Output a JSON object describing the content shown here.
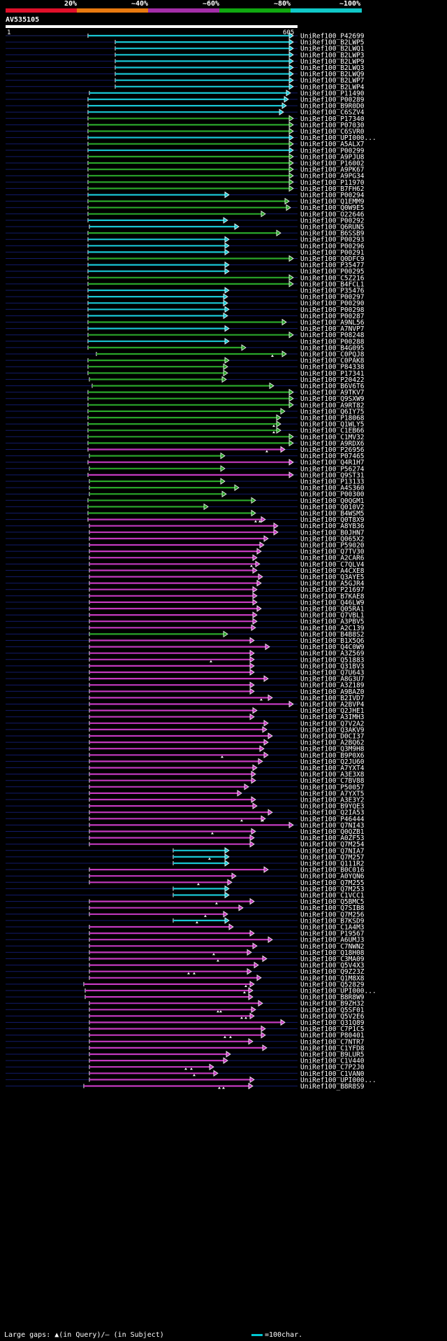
{
  "header": {
    "percent_labels": [
      "20%",
      "~40%",
      "~60%",
      "~80%",
      "~100%"
    ],
    "percent_colors": [
      "#e0102a",
      "#e87a10",
      "#a42ea8",
      "#10a810",
      "#10c8c8"
    ],
    "query_id": "AV535105",
    "query_start": "1",
    "query_end": "605"
  },
  "colors": {
    "cyan": "#19c6d4",
    "green": "#2aa62a",
    "magenta": "#c43ac0",
    "navy": "#121a6a"
  },
  "footer": {
    "gaps_legend": "Large gaps: ▲(in Query)/– (in Subject)",
    "scale_legend": "=100char."
  },
  "hits": [
    {
      "id": "UniRef100_P42699",
      "c": "c",
      "x1": 126,
      "x2": 420,
      "pre": true
    },
    {
      "id": "UniRef100_B2LWP5",
      "c": "c",
      "x1": 165,
      "x2": 420
    },
    {
      "id": "UniRef100_B2LWQ1",
      "c": "c",
      "x1": 165,
      "x2": 420
    },
    {
      "id": "UniRef100_B2LWP3",
      "c": "c",
      "x1": 165,
      "x2": 420
    },
    {
      "id": "UniRef100_B2LWP9",
      "c": "c",
      "x1": 165,
      "x2": 420
    },
    {
      "id": "UniRef100_B2LWQ3",
      "c": "c",
      "x1": 165,
      "x2": 420
    },
    {
      "id": "UniRef100_B2LWQ9",
      "c": "c",
      "x1": 165,
      "x2": 420
    },
    {
      "id": "UniRef100_B2LWP7",
      "c": "c",
      "x1": 165,
      "x2": 420
    },
    {
      "id": "UniRef100_B2LWP4",
      "c": "c",
      "x1": 165,
      "x2": 420
    },
    {
      "id": "UniRef100_P11490",
      "c": "c",
      "x1": 128,
      "x2": 416
    },
    {
      "id": "UniRef100_P00289",
      "c": "c",
      "x1": 126,
      "x2": 413
    },
    {
      "id": "UniRef100_B9R0D0",
      "c": "c",
      "x1": 126,
      "x2": 410
    },
    {
      "id": "UniRef100_C6SZV4",
      "c": "c",
      "x1": 126,
      "x2": 406
    },
    {
      "id": "UniRef100_P17340",
      "c": "g",
      "x1": 126,
      "x2": 420
    },
    {
      "id": "UniRef100_P07030",
      "c": "g",
      "x1": 126,
      "x2": 420
    },
    {
      "id": "UniRef100_C6SVR0",
      "c": "g",
      "x1": 126,
      "x2": 420
    },
    {
      "id": "UniRef100_UPI000...",
      "c": "c",
      "x1": 126,
      "x2": 420
    },
    {
      "id": "UniRef100_A5ALX7",
      "c": "g",
      "x1": 126,
      "x2": 420
    },
    {
      "id": "UniRef100_P00299",
      "c": "c",
      "x1": 126,
      "x2": 420
    },
    {
      "id": "UniRef100_A9PJU8",
      "c": "g",
      "x1": 126,
      "x2": 420
    },
    {
      "id": "UniRef100_P16002",
      "c": "g",
      "x1": 126,
      "x2": 420
    },
    {
      "id": "UniRef100_A9PK67",
      "c": "g",
      "x1": 126,
      "x2": 420
    },
    {
      "id": "UniRef100_A9PG34",
      "c": "g",
      "x1": 126,
      "x2": 420
    },
    {
      "id": "UniRef100_P11970",
      "c": "g",
      "x1": 126,
      "x2": 420
    },
    {
      "id": "UniRef100_B7FH62",
      "c": "g",
      "x1": 126,
      "x2": 420
    },
    {
      "id": "UniRef100_P00294",
      "c": "c",
      "x1": 126,
      "x2": 328
    },
    {
      "id": "UniRef100_Q1EMM9",
      "c": "g",
      "x1": 126,
      "x2": 414
    },
    {
      "id": "UniRef100_Q0W9E5",
      "c": "g",
      "x1": 126,
      "x2": 416
    },
    {
      "id": "UniRef100_O22646",
      "c": "g",
      "x1": 126,
      "x2": 380
    },
    {
      "id": "UniRef100_P00292",
      "c": "c",
      "x1": 126,
      "x2": 326
    },
    {
      "id": "UniRef100_Q6RUN5",
      "c": "c",
      "x1": 128,
      "x2": 342
    },
    {
      "id": "UniRef100_B6SSB9",
      "c": "g",
      "x1": 126,
      "x2": 402
    },
    {
      "id": "UniRef100_P00293",
      "c": "c",
      "x1": 126,
      "x2": 328
    },
    {
      "id": "UniRef100_P00296",
      "c": "c",
      "x1": 126,
      "x2": 328
    },
    {
      "id": "UniRef100_P00291",
      "c": "c",
      "x1": 126,
      "x2": 328
    },
    {
      "id": "UniRef100_Q0DFC9",
      "c": "g",
      "x1": 126,
      "x2": 420
    },
    {
      "id": "UniRef100_P35477",
      "c": "c",
      "x1": 126,
      "x2": 328
    },
    {
      "id": "UniRef100_P00295",
      "c": "c",
      "x1": 126,
      "x2": 328
    },
    {
      "id": "UniRef100_C5Z216",
      "c": "g",
      "x1": 126,
      "x2": 420
    },
    {
      "id": "UniRef100_B4FCL1",
      "c": "g",
      "x1": 126,
      "x2": 420
    },
    {
      "id": "UniRef100_P35476",
      "c": "c",
      "x1": 126,
      "x2": 328
    },
    {
      "id": "UniRef100_P00297",
      "c": "c",
      "x1": 126,
      "x2": 326
    },
    {
      "id": "UniRef100_P00290",
      "c": "c",
      "x1": 126,
      "x2": 326
    },
    {
      "id": "UniRef100_P00298",
      "c": "c",
      "x1": 126,
      "x2": 328
    },
    {
      "id": "UniRef100_P00287",
      "c": "c",
      "x1": 126,
      "x2": 326
    },
    {
      "id": "UniRef100_A9NL56",
      "c": "g",
      "x1": 126,
      "x2": 410
    },
    {
      "id": "UniRef100_A7NVP7",
      "c": "c",
      "x1": 126,
      "x2": 328
    },
    {
      "id": "UniRef100_P08248",
      "c": "g",
      "x1": 126,
      "x2": 420
    },
    {
      "id": "UniRef100_P00288",
      "c": "c",
      "x1": 126,
      "x2": 328
    },
    {
      "id": "UniRef100_B4G095",
      "c": "g",
      "x1": 126,
      "x2": 352
    },
    {
      "id": "UniRef100_C0PQJ8",
      "c": "g",
      "x1": 138,
      "x2": 410,
      "tri": [
        390
      ]
    },
    {
      "id": "UniRef100_C0PAK8",
      "c": "g",
      "x1": 126,
      "x2": 328
    },
    {
      "id": "UniRef100_P84338",
      "c": "g",
      "x1": 126,
      "x2": 326
    },
    {
      "id": "UniRef100_P17341",
      "c": "g",
      "x1": 126,
      "x2": 326
    },
    {
      "id": "UniRef100_P20422",
      "c": "g",
      "x1": 128,
      "x2": 324
    },
    {
      "id": "UniRef100_B6V6T6",
      "c": "g",
      "x1": 132,
      "x2": 392
    },
    {
      "id": "UniRef100_A9TKV7",
      "c": "g",
      "x1": 126,
      "x2": 420
    },
    {
      "id": "UniRef100_Q9SXW9",
      "c": "g",
      "x1": 126,
      "x2": 420
    },
    {
      "id": "UniRef100_A9RT82",
      "c": "g",
      "x1": 126,
      "x2": 420
    },
    {
      "id": "UniRef100_Q6IY75",
      "c": "g",
      "x1": 126,
      "x2": 408
    },
    {
      "id": "UniRef100_P18068",
      "c": "g",
      "x1": 126,
      "x2": 402
    },
    {
      "id": "UniRef100_Q1WLY5",
      "c": "g",
      "x1": 126,
      "x2": 402,
      "tri": [
        392
      ]
    },
    {
      "id": "UniRef100_C1EB66",
      "c": "g",
      "x1": 126,
      "x2": 402,
      "tri": [
        392
      ]
    },
    {
      "id": "UniRef100_C1MV32",
      "c": "g",
      "x1": 126,
      "x2": 420
    },
    {
      "id": "UniRef100_A9RDX6",
      "c": "g",
      "x1": 126,
      "x2": 420
    },
    {
      "id": "UniRef100_P26956",
      "c": "m",
      "x1": 126,
      "x2": 408,
      "tri": [
        382
      ]
    },
    {
      "id": "UniRef100_P07465",
      "c": "g",
      "x1": 128,
      "x2": 322
    },
    {
      "id": "UniRef100_Q4R1H7",
      "c": "m",
      "x1": 126,
      "x2": 420
    },
    {
      "id": "UniRef100_P56274",
      "c": "g",
      "x1": 128,
      "x2": 322
    },
    {
      "id": "UniRef100_Q9ST31",
      "c": "m",
      "x1": 126,
      "x2": 420
    },
    {
      "id": "UniRef100_P13133",
      "c": "g",
      "x1": 128,
      "x2": 322
    },
    {
      "id": "UniRef100_A4S360",
      "c": "g",
      "x1": 128,
      "x2": 342
    },
    {
      "id": "UniRef100_P00300",
      "c": "g",
      "x1": 128,
      "x2": 324
    },
    {
      "id": "UniRef100_Q0QGM1",
      "c": "g",
      "x1": 126,
      "x2": 366
    },
    {
      "id": "UniRef100_Q010V2",
      "c": "g",
      "x1": 126,
      "x2": 298
    },
    {
      "id": "UniRef100_B4WSM5",
      "c": "g",
      "x1": 126,
      "x2": 366
    },
    {
      "id": "UniRef100_Q0T8X9",
      "c": "m",
      "x1": 126,
      "x2": 380,
      "tri": [
        366,
        372
      ]
    },
    {
      "id": "UniRef100_A8YB36",
      "c": "m",
      "x1": 128,
      "x2": 398
    },
    {
      "id": "UniRef100_B0JHN7",
      "c": "m",
      "x1": 128,
      "x2": 398
    },
    {
      "id": "UniRef100_Q065X2",
      "c": "m",
      "x1": 128,
      "x2": 384
    },
    {
      "id": "UniRef100_P59020",
      "c": "m",
      "x1": 128,
      "x2": 378
    },
    {
      "id": "UniRef100_Q7TV30",
      "c": "m",
      "x1": 128,
      "x2": 374
    },
    {
      "id": "UniRef100_A2CAR6",
      "c": "m",
      "x1": 128,
      "x2": 368
    },
    {
      "id": "UniRef100_C7QLV4",
      "c": "m",
      "x1": 128,
      "x2": 372,
      "tri": [
        360
      ]
    },
    {
      "id": "UniRef100_A4CXE8",
      "c": "m",
      "x1": 128,
      "x2": 368
    },
    {
      "id": "UniRef100_Q3AYE5",
      "c": "m",
      "x1": 128,
      "x2": 376
    },
    {
      "id": "UniRef100_A5GJR4",
      "c": "m",
      "x1": 128,
      "x2": 374
    },
    {
      "id": "UniRef100_P21697",
      "c": "m",
      "x1": 128,
      "x2": 368
    },
    {
      "id": "UniRef100_B7KAE8",
      "c": "m",
      "x1": 128,
      "x2": 368
    },
    {
      "id": "UniRef100_Q46LW9",
      "c": "m",
      "x1": 128,
      "x2": 368
    },
    {
      "id": "UniRef100_Q05RA1",
      "c": "m",
      "x1": 128,
      "x2": 374
    },
    {
      "id": "UniRef100_Q7VBL1",
      "c": "m",
      "x1": 128,
      "x2": 368
    },
    {
      "id": "UniRef100_A3PBV5",
      "c": "m",
      "x1": 128,
      "x2": 368
    },
    {
      "id": "UniRef100_A2C139",
      "c": "m",
      "x1": 128,
      "x2": 366
    },
    {
      "id": "UniRef100_B4B8S2",
      "c": "g",
      "x1": 128,
      "x2": 326
    },
    {
      "id": "UniRef100_B1X5Q6",
      "c": "m",
      "x1": 128,
      "x2": 364
    },
    {
      "id": "UniRef100_Q4C0W9",
      "c": "m",
      "x1": 128,
      "x2": 386
    },
    {
      "id": "UniRef100_A3Z569",
      "c": "m",
      "x1": 128,
      "x2": 364
    },
    {
      "id": "UniRef100_Q51883",
      "c": "m",
      "x1": 128,
      "x2": 364,
      "tri": [
        302
      ]
    },
    {
      "id": "UniRef100_Q31BV3",
      "c": "m",
      "x1": 128,
      "x2": 364
    },
    {
      "id": "UniRef100_Q7U643",
      "c": "m",
      "x1": 128,
      "x2": 364
    },
    {
      "id": "UniRef100_A8G3U7",
      "c": "m",
      "x1": 128,
      "x2": 384
    },
    {
      "id": "UniRef100_A3Z189",
      "c": "m",
      "x1": 128,
      "x2": 364
    },
    {
      "id": "UniRef100_A9BAZ0",
      "c": "m",
      "x1": 128,
      "x2": 364
    },
    {
      "id": "UniRef100_B2IVD7",
      "c": "m",
      "x1": 128,
      "x2": 390,
      "tri": [
        374
      ]
    },
    {
      "id": "UniRef100_A2BVP4",
      "c": "m",
      "x1": 128,
      "x2": 420
    },
    {
      "id": "UniRef100_Q2JHE1",
      "c": "m",
      "x1": 128,
      "x2": 368
    },
    {
      "id": "UniRef100_A3IMH3",
      "c": "m",
      "x1": 128,
      "x2": 364
    },
    {
      "id": "UniRef100_Q7V2A2",
      "c": "m",
      "x1": 128,
      "x2": 384
    },
    {
      "id": "UniRef100_Q3AKV9",
      "c": "m",
      "x1": 128,
      "x2": 382
    },
    {
      "id": "UniRef100_D0CI37",
      "c": "m",
      "x1": 128,
      "x2": 390
    },
    {
      "id": "UniRef100_A2BQ62",
      "c": "m",
      "x1": 128,
      "x2": 384
    },
    {
      "id": "UniRef100_Q3M9H8",
      "c": "m",
      "x1": 128,
      "x2": 378
    },
    {
      "id": "UniRef100_B9P0X6",
      "c": "m",
      "x1": 128,
      "x2": 384,
      "tri": [
        318
      ]
    },
    {
      "id": "UniRef100_Q2JU60",
      "c": "m",
      "x1": 128,
      "x2": 376
    },
    {
      "id": "UniRef100_A7YXT4",
      "c": "m",
      "x1": 128,
      "x2": 368
    },
    {
      "id": "UniRef100_A3E3X8",
      "c": "m",
      "x1": 128,
      "x2": 366
    },
    {
      "id": "UniRef100_C7BV88",
      "c": "m",
      "x1": 128,
      "x2": 366
    },
    {
      "id": "UniRef100_P50057",
      "c": "m",
      "x1": 128,
      "x2": 356
    },
    {
      "id": "UniRef100_A7YXT5",
      "c": "m",
      "x1": 128,
      "x2": 346
    },
    {
      "id": "UniRef100_A3E3Y2",
      "c": "m",
      "x1": 128,
      "x2": 366
    },
    {
      "id": "UniRef100_B9YQE3",
      "c": "m",
      "x1": 128,
      "x2": 368
    },
    {
      "id": "UniRef100_Q2IA53",
      "c": "m",
      "x1": 128,
      "x2": 390
    },
    {
      "id": "UniRef100_P46444",
      "c": "m",
      "x1": 128,
      "x2": 380,
      "tri": [
        346,
        376
      ]
    },
    {
      "id": "UniRef100_Q7NI43",
      "c": "m",
      "x1": 128,
      "x2": 420
    },
    {
      "id": "UniRef100_Q0QZB1",
      "c": "m",
      "x1": 128,
      "x2": 366,
      "tri": [
        304
      ]
    },
    {
      "id": "UniRef100_A0ZF53",
      "c": "m",
      "x1": 128,
      "x2": 364
    },
    {
      "id": "UniRef100_Q7M254",
      "c": "m",
      "x1": 128,
      "x2": 364
    },
    {
      "id": "UniRef100_Q7NIA7",
      "c": "c",
      "x1": 248,
      "x2": 328
    },
    {
      "id": "UniRef100_Q7M257",
      "c": "c",
      "x1": 248,
      "x2": 328,
      "tri": [
        300
      ]
    },
    {
      "id": "UniRef100_Q111R2",
      "c": "c",
      "x1": 248,
      "x2": 328
    },
    {
      "id": "UniRef100_B0C016",
      "c": "m",
      "x1": 128,
      "x2": 384
    },
    {
      "id": "UniRef100_A0YQN6",
      "c": "m",
      "x1": 128,
      "x2": 338
    },
    {
      "id": "UniRef100_Q7M255",
      "c": "m",
      "x1": 128,
      "x2": 332,
      "tri": [
        284
      ]
    },
    {
      "id": "UniRef100_Q7M253",
      "c": "c",
      "x1": 248,
      "x2": 328
    },
    {
      "id": "UniRef100_C1VCC1",
      "c": "c",
      "x1": 248,
      "x2": 328
    },
    {
      "id": "UniRef100_Q5BMC5",
      "c": "m",
      "x1": 128,
      "x2": 364,
      "tri": [
        310
      ]
    },
    {
      "id": "UniRef100_Q7SIB8",
      "c": "m",
      "x1": 128,
      "x2": 348
    },
    {
      "id": "UniRef100_Q7M256",
      "c": "m",
      "x1": 128,
      "x2": 326,
      "tri": [
        294
      ]
    },
    {
      "id": "UniRef100_B7KSD9",
      "c": "c",
      "x1": 248,
      "x2": 328,
      "tri": [
        282
      ]
    },
    {
      "id": "UniRef100_C1A4M3",
      "c": "m",
      "x1": 128,
      "x2": 334
    },
    {
      "id": "UniRef100_P19567",
      "c": "m",
      "x1": 128,
      "x2": 364
    },
    {
      "id": "UniRef100_A6UMJ3",
      "c": "m",
      "x1": 128,
      "x2": 390
    },
    {
      "id": "UniRef100_C7NWN2",
      "c": "m",
      "x1": 128,
      "x2": 368
    },
    {
      "id": "UniRef100_Q18H08",
      "c": "m",
      "x1": 128,
      "x2": 360,
      "tri": [
        306
      ]
    },
    {
      "id": "UniRef100_C3MA09",
      "c": "m",
      "x1": 128,
      "x2": 382,
      "tri": [
        312
      ]
    },
    {
      "id": "UniRef100_Q5V4X3",
      "c": "m",
      "x1": 128,
      "x2": 370
    },
    {
      "id": "UniRef100_Q9Z23Z",
      "c": "m",
      "x1": 128,
      "x2": 360,
      "tri": [
        270,
        278
      ]
    },
    {
      "id": "UniRef100_Q1M8X8",
      "c": "m",
      "x1": 128,
      "x2": 374
    },
    {
      "id": "UniRef100_Q52829",
      "c": "m",
      "x1": 120,
      "x2": 364,
      "tri": [
        352
      ]
    },
    {
      "id": "UniRef100_UPI000...",
      "c": "m",
      "x1": 122,
      "x2": 362,
      "tri": [
        350
      ]
    },
    {
      "id": "UniRef100_B8R8W9",
      "c": "m",
      "x1": 122,
      "x2": 362
    },
    {
      "id": "UniRef100_B9ZH32",
      "c": "m",
      "x1": 128,
      "x2": 376
    },
    {
      "id": "UniRef100_Q5SF01",
      "c": "m",
      "x1": 128,
      "x2": 366,
      "tri": [
        312,
        316
      ]
    },
    {
      "id": "UniRef100_Q5V2E6",
      "c": "m",
      "x1": 128,
      "x2": 364,
      "tri": [
        346,
        352
      ]
    },
    {
      "id": "UniRef100_Q31Q89",
      "c": "m",
      "x1": 128,
      "x2": 408
    },
    {
      "id": "UniRef100_C7P1C5",
      "c": "m",
      "x1": 128,
      "x2": 380
    },
    {
      "id": "UniRef100_P80401",
      "c": "m",
      "x1": 128,
      "x2": 380,
      "tri": [
        322,
        330
      ]
    },
    {
      "id": "UniRef100_C7NTR7",
      "c": "m",
      "x1": 128,
      "x2": 362
    },
    {
      "id": "UniRef100_C1YFD8",
      "c": "m",
      "x1": 128,
      "x2": 382
    },
    {
      "id": "UniRef100_B9LUR5",
      "c": "m",
      "x1": 128,
      "x2": 330
    },
    {
      "id": "UniRef100_C1V440",
      "c": "m",
      "x1": 128,
      "x2": 326
    },
    {
      "id": "UniRef100_C7P2J0",
      "c": "m",
      "x1": 128,
      "x2": 306,
      "tri": [
        266,
        274
      ]
    },
    {
      "id": "UniRef100_C1VAN0",
      "c": "m",
      "x1": 128,
      "x2": 312,
      "tri": [
        278
      ]
    },
    {
      "id": "UniRef100_UPI000...",
      "c": "m",
      "x1": 128,
      "x2": 364
    },
    {
      "id": "UniRef100_B8R8S9",
      "c": "m",
      "x1": 120,
      "x2": 362,
      "tri": [
        314,
        320
      ]
    }
  ]
}
